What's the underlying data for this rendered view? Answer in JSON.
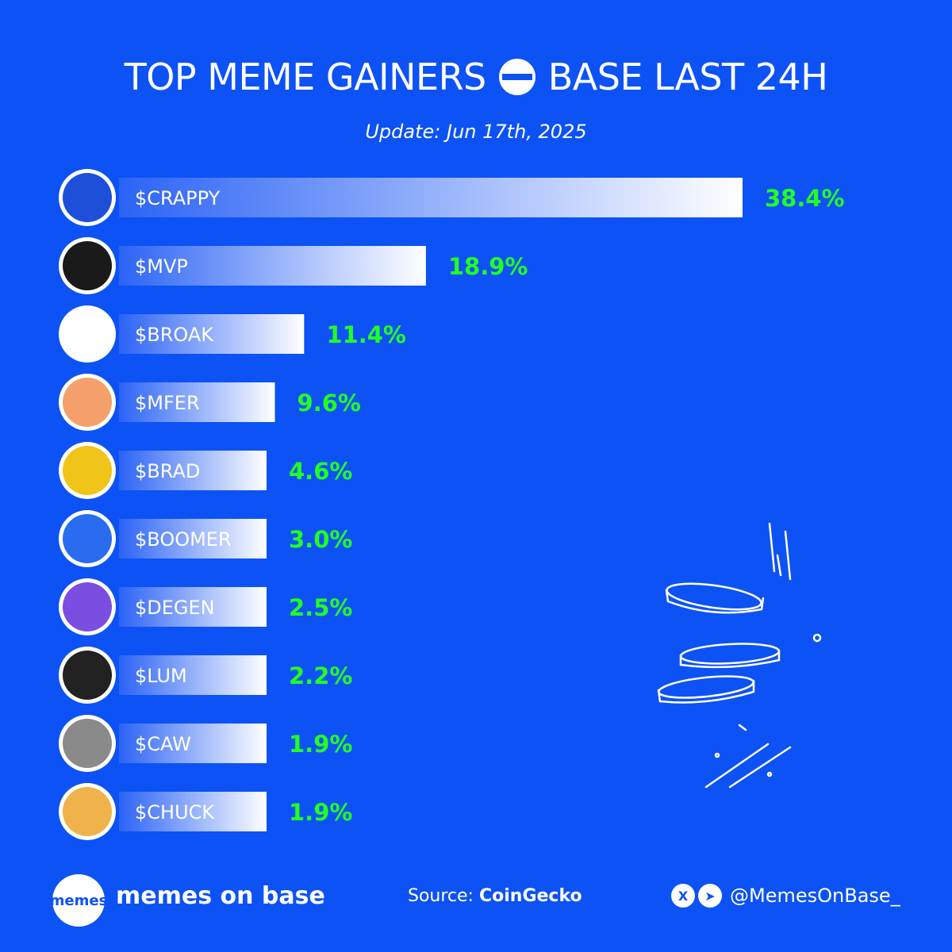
{
  "header": {
    "title_left": "TOP MEME GAINERS",
    "title_right": "BASE LAST 24H",
    "subtitle": "Update: Jun 17th, 2025"
  },
  "colors": {
    "background": "#0c52f5",
    "bar_start": "#2b63f6",
    "bar_end": "#ffffff",
    "value_text": "#22ff22",
    "text": "#ffffff"
  },
  "chart_data": {
    "type": "bar",
    "orientation": "horizontal",
    "categories": [
      "$CRAPPY",
      "$MVP",
      "$BROAK",
      "$MFER",
      "$BRAD",
      "$BOOMER",
      "$DEGEN",
      "$LUM",
      "$CAW",
      "$CHUCK"
    ],
    "values": [
      38.4,
      18.9,
      11.4,
      9.6,
      4.6,
      3.0,
      2.5,
      2.2,
      1.9,
      1.9
    ],
    "value_labels": [
      "38.4%",
      "18.9%",
      "11.4%",
      "9.6%",
      "4.6%",
      "3.0%",
      "2.5%",
      "2.2%",
      "1.9%",
      "1.9%"
    ],
    "avatar_colors": [
      "#1e4fd8",
      "#1a1a1a",
      "#ffffff",
      "#f5a06a",
      "#f0c419",
      "#2a6cf0",
      "#7a4ee0",
      "#222222",
      "#8a8a8a",
      "#f0b24a"
    ],
    "avatar_icons": [
      "ctl-blue-frog-icon",
      "helmet-figure-icon",
      "blue-frog-icon",
      "headset-character-icon",
      "dog-icon",
      "sunglasses-man-icon",
      "top-hat-icon",
      "swirl-orb-icon",
      "crow-icon",
      "dog-bandana-icon"
    ]
  },
  "footer": {
    "logo_text": "memes",
    "brand": "memes on base",
    "source_label": "Source:",
    "source_name": "CoinGecko",
    "x_icon": "X",
    "telegram_icon": "➤",
    "handle": "@MemesOnBase_"
  }
}
